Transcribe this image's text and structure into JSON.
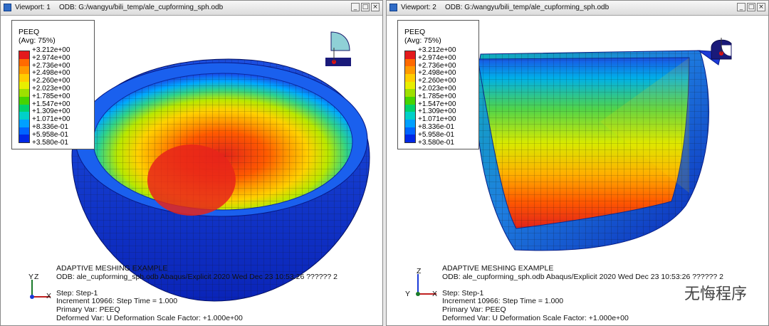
{
  "legend_colors": [
    "#e31a1c",
    "#ff6a00",
    "#ff9a00",
    "#ffcd00",
    "#e8ee00",
    "#9ee000",
    "#46d400",
    "#00d26a",
    "#00d0c8",
    "#00a0ff",
    "#0064ff",
    "#0028e6"
  ],
  "viewport1": {
    "title": "Viewport: 1",
    "odb": "ODB: G:/wangyu/bili_temp/ale_cupforming_sph.odb",
    "legend": {
      "variable": "PEEQ",
      "avg": "(Avg: 75%)",
      "values": [
        "+3.212e+00",
        "+2.974e+00",
        "+2.736e+00",
        "+2.498e+00",
        "+2.260e+00",
        "+2.023e+00",
        "+1.785e+00",
        "+1.547e+00",
        "+1.309e+00",
        "+1.071e+00",
        "+8.336e-01",
        "+5.958e-01",
        "+3.580e-01"
      ]
    },
    "triad_labels": {
      "y": "Y",
      "z": "Z",
      "x": "X"
    },
    "info": {
      "title": "ADAPTIVE MESHING EXAMPLE",
      "odb_line": "ODB: ale_cupforming_sph.odb    Abaqus/Explicit 2020    Wed Dec 23 10:53:26 ?????? 2",
      "step": "Step: Step-1",
      "increment": "Increment     10966: Step Time =     1.000",
      "primary": "Primary Var: PEEQ",
      "deformed": "Deformed Var: U   Deformation Scale Factor: +1.000e+00"
    }
  },
  "viewport2": {
    "title": "Viewport: 2",
    "odb": "ODB: G:/wangyu/bili_temp/ale_cupforming_sph.odb",
    "legend": {
      "variable": "PEEQ",
      "avg": "(Avg: 75%)",
      "values": [
        "+3.212e+00",
        "+2.974e+00",
        "+2.736e+00",
        "+2.498e+00",
        "+2.260e+00",
        "+2.023e+00",
        "+1.785e+00",
        "+1.547e+00",
        "+1.309e+00",
        "+1.071e+00",
        "+8.336e-01",
        "+5.958e-01",
        "+3.580e-01"
      ]
    },
    "triad_labels": {
      "y": "Y",
      "z": "Z",
      "x": "X"
    },
    "info": {
      "title": "ADAPTIVE MESHING EXAMPLE",
      "odb_line": "ODB: ale_cupforming_sph.odb    Abaqus/Explicit 2020    Wed Dec 23 10:53:26 ?????? 2",
      "step": "Step: Step-1",
      "increment": "Increment     10966: Step Time =     1.000",
      "primary": "Primary Var: PEEQ",
      "deformed": "Deformed Var: U   Deformation Scale Factor: +1.000e+00"
    }
  },
  "window_buttons": {
    "minimize": "_",
    "maximize": "□",
    "close": "×"
  },
  "watermark": "无悔程序"
}
